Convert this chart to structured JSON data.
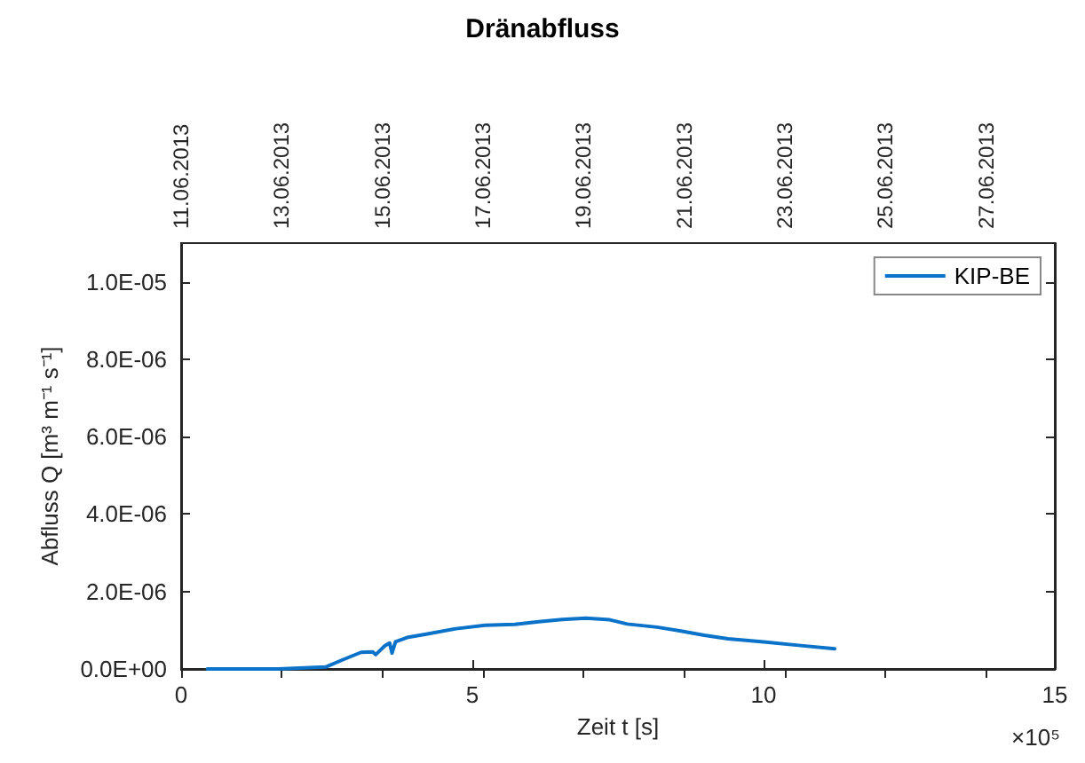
{
  "chart_data": {
    "type": "line",
    "title": "Dränabfluss",
    "xlabel": "Zeit t [s]",
    "ylabel": "Abfluss Q [m³ m⁻¹ s⁻¹]",
    "annotations": [
      "×10⁵"
    ],
    "x": [
      0.45,
      1.67,
      2.48,
      2.78,
      3.09,
      3.29,
      3.34,
      3.5,
      3.58,
      3.62,
      3.68,
      3.9,
      4.21,
      4.72,
      5.22,
      5.73,
      6.14,
      6.54,
      6.95,
      7.36,
      7.66,
      8.17,
      8.58,
      8.98,
      9.39,
      10.0,
      10.6,
      11.22
    ],
    "series": [
      {
        "name": "KIP-BE",
        "color": "#0a72c8",
        "values": [
          0,
          0,
          5e-08,
          2.4e-07,
          4.3e-07,
          4.4e-07,
          3.7e-07,
          6e-07,
          6.7e-07,
          4.1e-07,
          7e-07,
          8.2e-07,
          9e-07,
          1.04e-06,
          1.13e-06,
          1.15e-06,
          1.22e-06,
          1.28e-06,
          1.31e-06,
          1.27e-06,
          1.16e-06,
          1.08e-06,
          9.8e-07,
          8.7e-07,
          7.8e-07,
          7e-07,
          6.1e-07,
          5.2e-07
        ]
      }
    ],
    "xlim": [
      0,
      15
    ],
    "xticks": [
      0,
      5,
      10,
      15
    ],
    "ylim": [
      0,
      1.1e-05
    ],
    "yticks": [
      {
        "value": 0,
        "label": "0.0E+00"
      },
      {
        "value": 2e-06,
        "label": "2.0E-06"
      },
      {
        "value": 4e-06,
        "label": "4.0E-06"
      },
      {
        "value": 6e-06,
        "label": "6.0E-06"
      },
      {
        "value": 8e-06,
        "label": "8.0E-06"
      },
      {
        "value": 1e-05,
        "label": "1.0E-05"
      }
    ],
    "x2lim": [
      "2013-06-11T00:00",
      "2013-06-28T08:40"
    ],
    "x2ticks": [
      {
        "value": "2013-06-11",
        "label": "11.06.2013"
      },
      {
        "value": "2013-06-13",
        "label": "13.06.2013"
      },
      {
        "value": "2013-06-15",
        "label": "15.06.2013"
      },
      {
        "value": "2013-06-17",
        "label": "17.06.2013"
      },
      {
        "value": "2013-06-19",
        "label": "19.06.2013"
      },
      {
        "value": "2013-06-21",
        "label": "21.06.2013"
      },
      {
        "value": "2013-06-23",
        "label": "23.06.2013"
      },
      {
        "value": "2013-06-25",
        "label": "25.06.2013"
      },
      {
        "value": "2013-06-27",
        "label": "27.06.2013"
      }
    ],
    "legend": "top right",
    "grid": false,
    "marker": "none",
    "line_style": "solid"
  }
}
